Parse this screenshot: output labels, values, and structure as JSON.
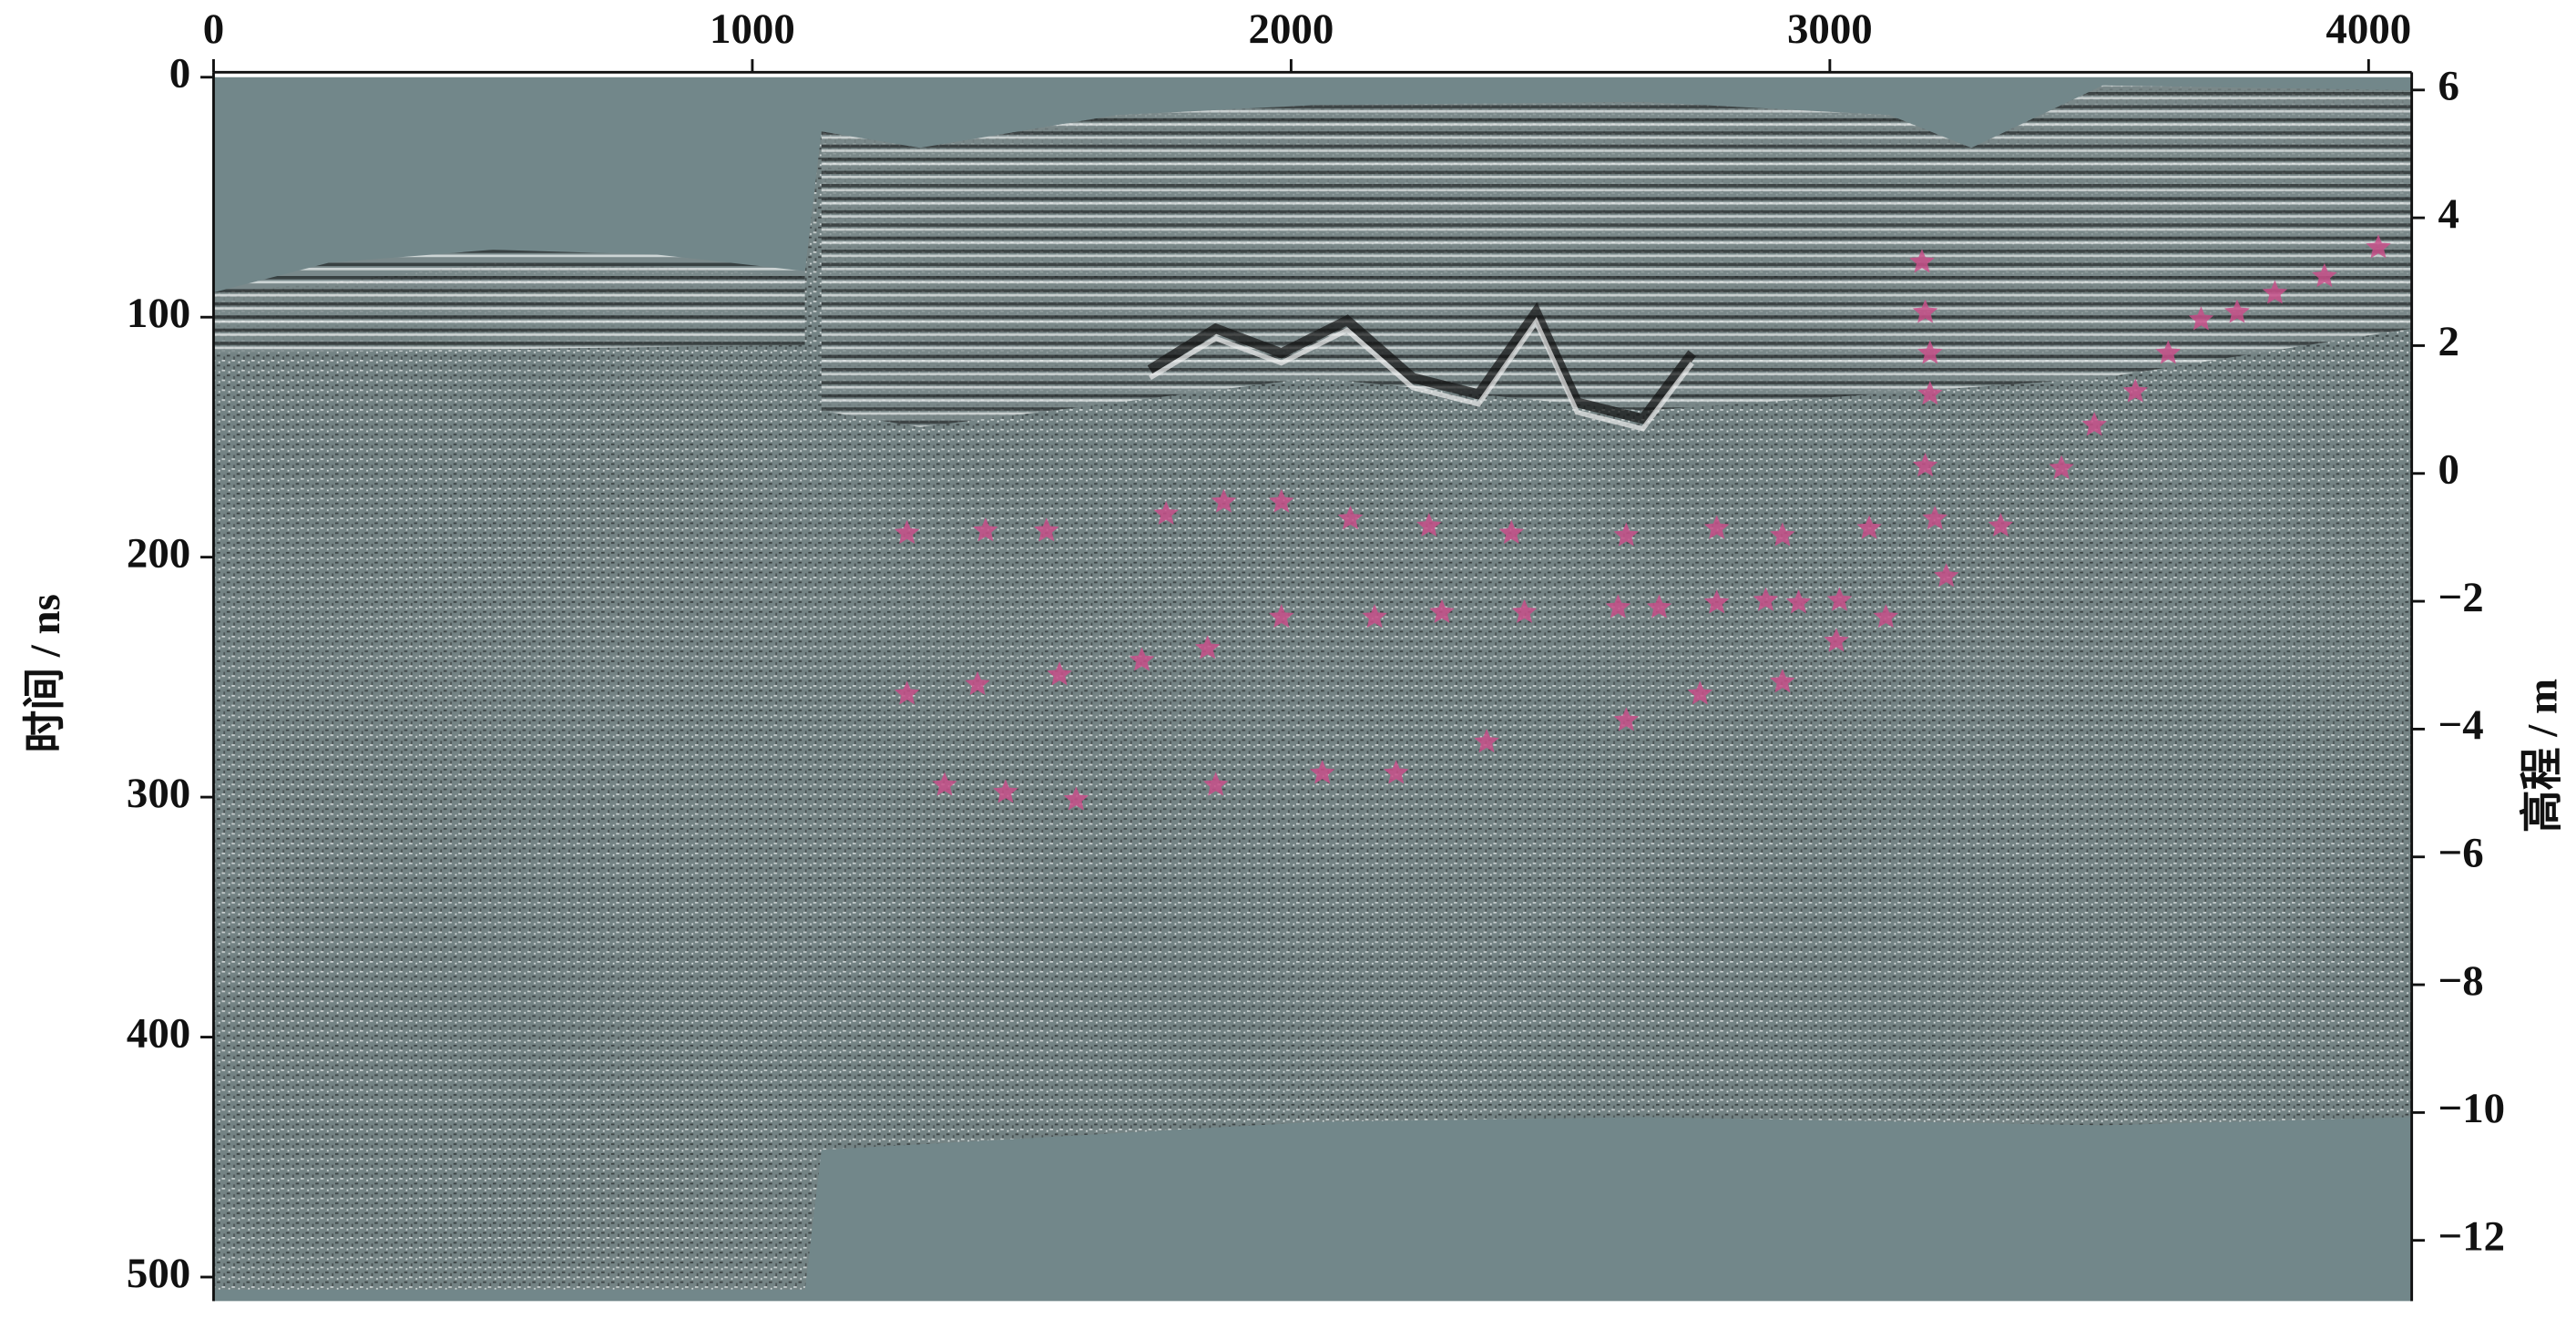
{
  "chart_data": {
    "type": "scatter",
    "x_axis_position": "top",
    "y_label": "时间 / ns",
    "y2_label": "高程 / m",
    "xlim": [
      0,
      4080
    ],
    "xticks": [
      0,
      1000,
      2000,
      3000,
      4000
    ],
    "ylim": [
      510,
      0
    ],
    "yticks": [
      0,
      100,
      200,
      300,
      400,
      500
    ],
    "y2lim": [
      -12.95,
      6.2
    ],
    "y2ticks": [
      6,
      4,
      2,
      0,
      {
        "value": -2,
        "label": "−2"
      },
      {
        "value": -4,
        "label": "−4"
      },
      {
        "value": -6,
        "label": "−6"
      },
      {
        "value": -8,
        "label": "−8"
      },
      {
        "value": -10,
        "label": "−10"
      },
      {
        "value": -12,
        "label": "−12"
      }
    ],
    "color": "#c8508a",
    "x": [
      1287,
      1433,
      1546,
      1768,
      1875,
      1982,
      2110,
      2256,
      2409,
      2622,
      2790,
      2912,
      3073,
      3195,
      3317,
      1287,
      1418,
      1570,
      1723,
      1845,
      1982,
      2155,
      2280,
      2433,
      2607,
      2683,
      2790,
      2881,
      2942,
      3018,
      3104,
      3012,
      2759,
      2912,
      2622,
      1357,
      1470,
      1601,
      1860,
      2058,
      2195,
      2363,
      3171,
      3177,
      3186,
      3186,
      3177,
      3216,
      3430,
      3491,
      3567,
      3628,
      3689,
      3756,
      3826,
      3918,
      4018
    ],
    "y": [
      190,
      189,
      189,
      182,
      177,
      177,
      184,
      187,
      190,
      191,
      188,
      191,
      188,
      184,
      187,
      257,
      253,
      249,
      243,
      238,
      225,
      225,
      223,
      223,
      221,
      221,
      219,
      218,
      219,
      218,
      225,
      235,
      257,
      252,
      268,
      295,
      298,
      301,
      295,
      290,
      290,
      277,
      77,
      98,
      115,
      132,
      162,
      208,
      163,
      145,
      131,
      115,
      101,
      98,
      90,
      83,
      71
    ]
  }
}
